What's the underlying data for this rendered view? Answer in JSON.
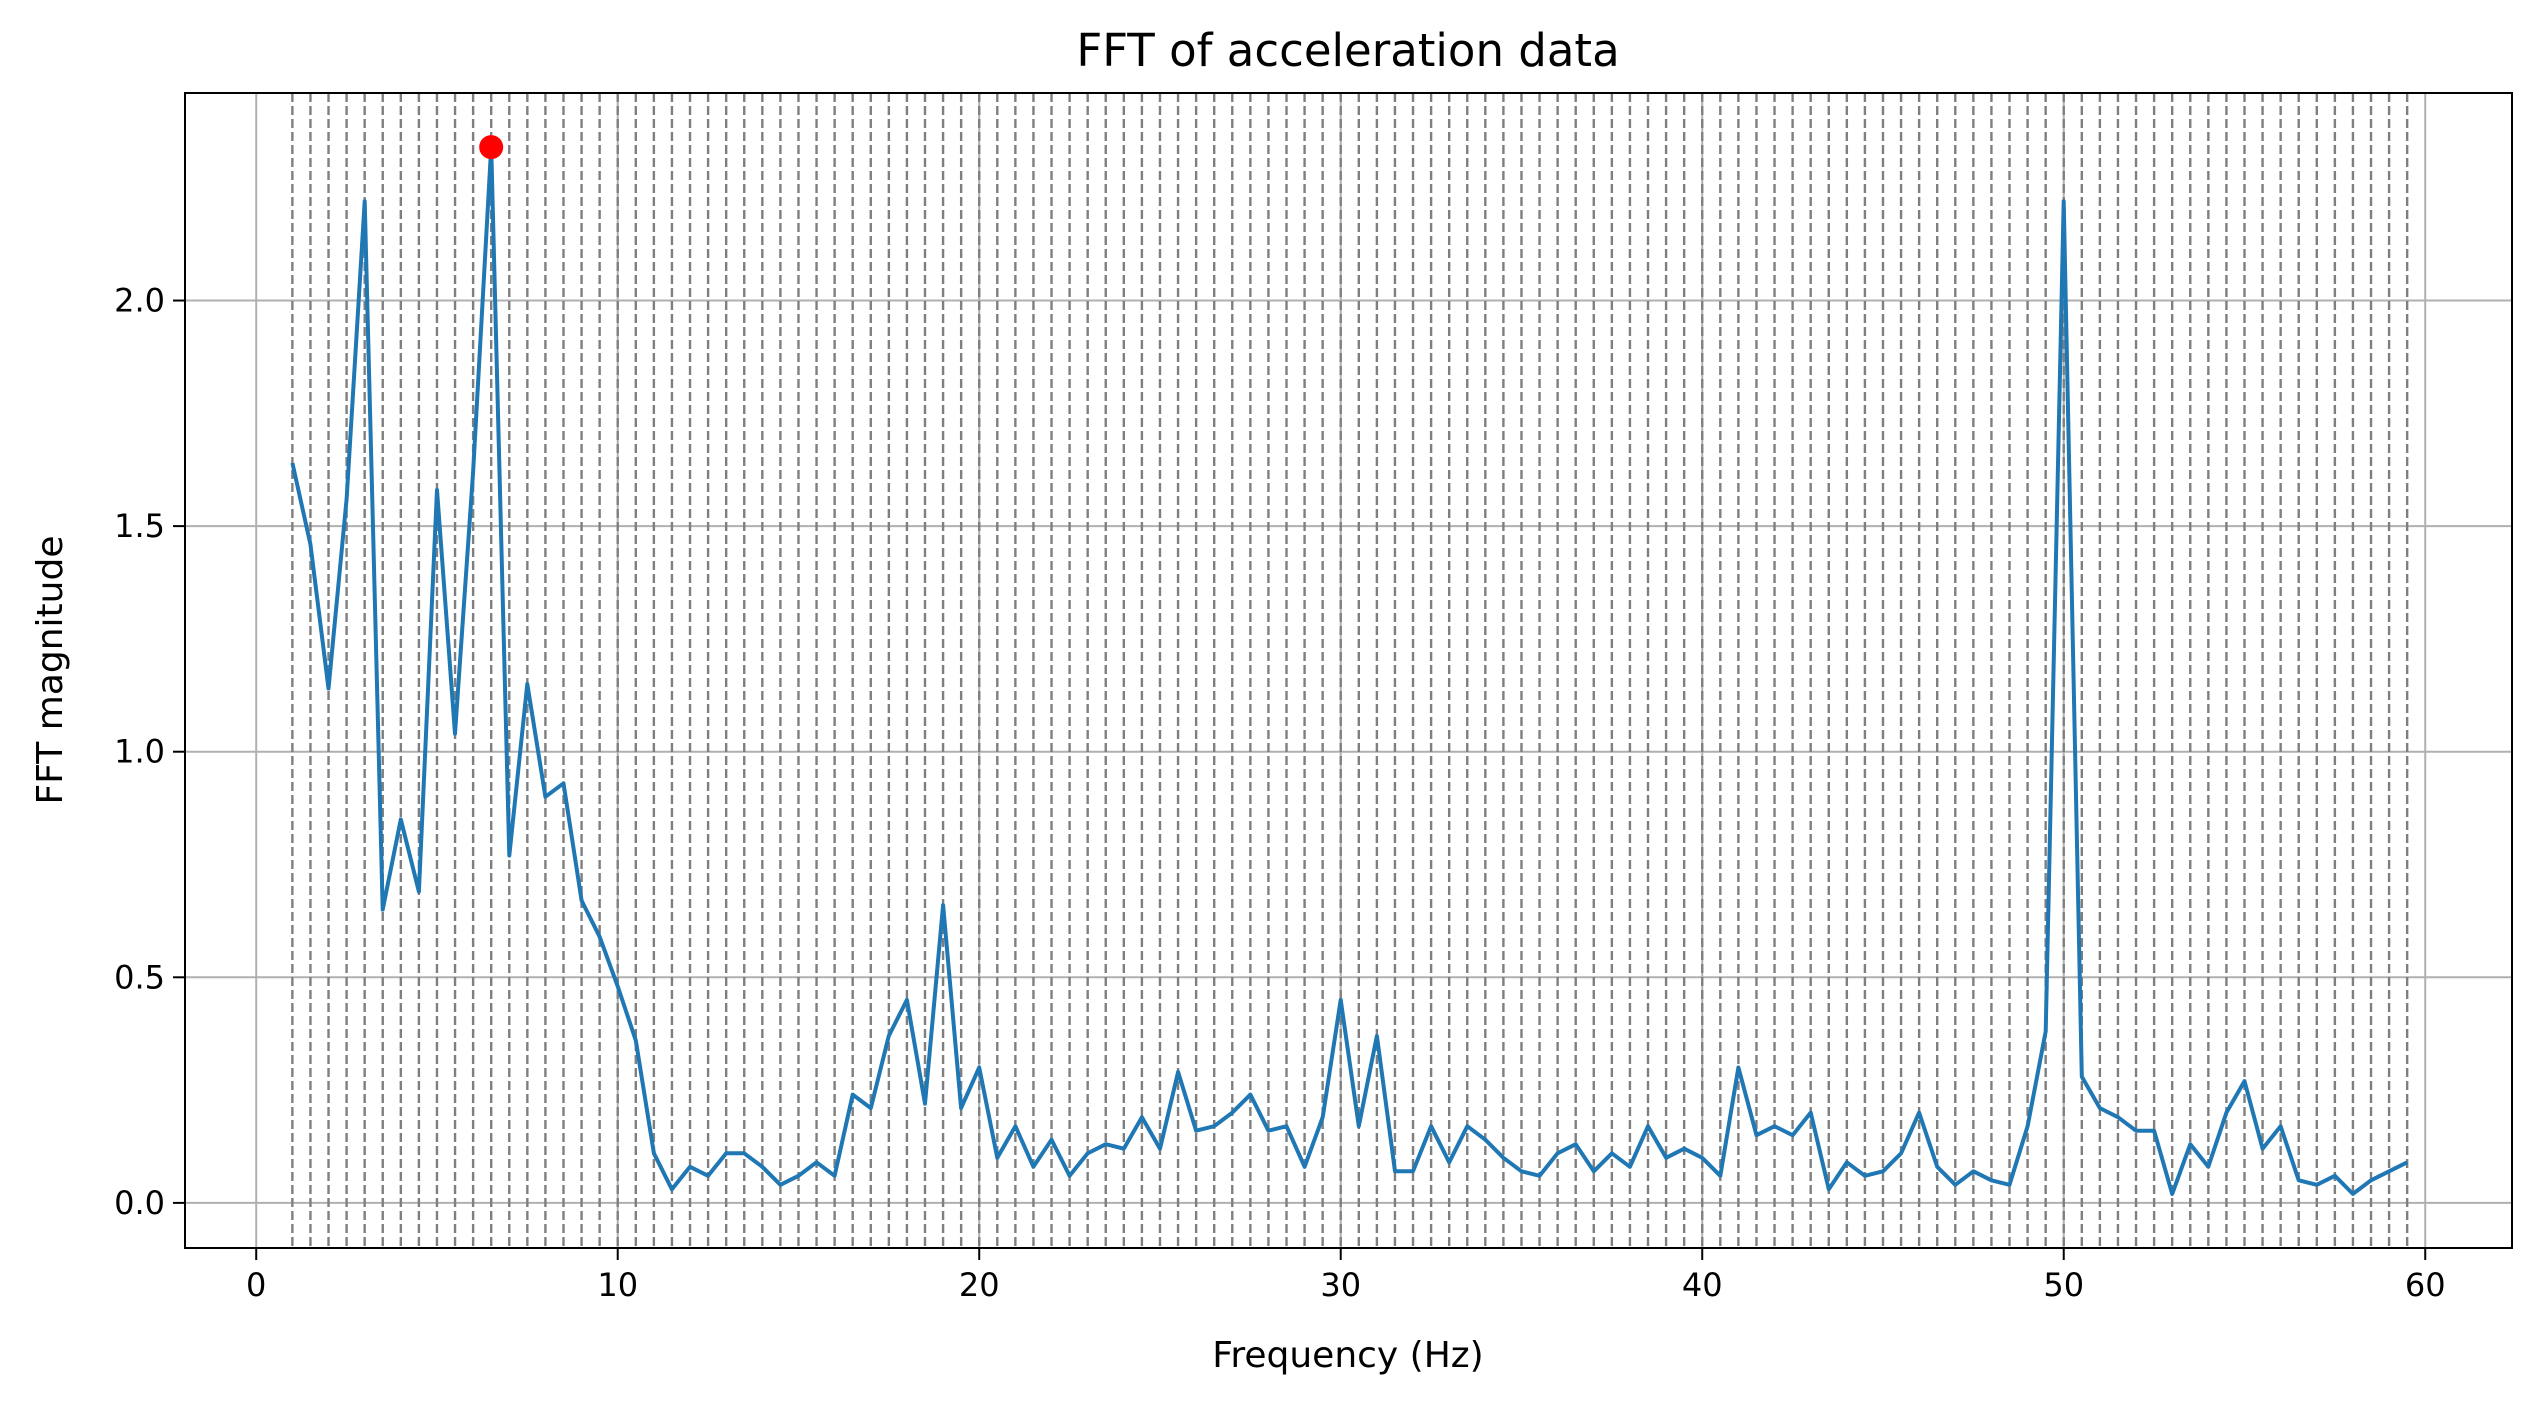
{
  "chart_data": {
    "type": "line",
    "title": "FFT of acceleration data",
    "xlabel": "Frequency (Hz)",
    "ylabel": "FFT magnitude",
    "xlim": [
      -1.97,
      62.4
    ],
    "ylim": [
      -0.1,
      2.46
    ],
    "xticks": [
      0,
      10,
      20,
      30,
      40,
      50,
      60
    ],
    "yticks": [
      0.0,
      0.5,
      1.0,
      1.5,
      2.0
    ],
    "xtick_labels": [
      "0",
      "10",
      "20",
      "30",
      "40",
      "50",
      "60"
    ],
    "ytick_labels": [
      "0.0",
      "0.5",
      "1.0",
      "1.5",
      "2.0"
    ],
    "grid": true,
    "colors": {
      "line": "#1f77b4",
      "peak": "#ff0000",
      "vlines": "#7f7f7f",
      "grid": "#b0b0b0"
    },
    "vlines": {
      "style": "dashed",
      "start": 1.0,
      "step": 0.5,
      "count": 118
    },
    "series": [
      {
        "x": [
          1.0,
          1.5,
          2.0,
          2.5,
          3.0,
          3.5,
          4.0,
          4.5,
          5.0,
          5.5,
          6.0,
          6.5,
          7.0,
          7.5,
          8.0,
          8.5,
          9.0,
          9.5,
          10.0,
          10.5,
          11.0,
          11.5,
          12.0,
          12.5,
          13.0,
          13.5,
          14.0,
          14.5,
          15.0,
          15.5,
          16.0,
          16.5,
          17.0,
          17.5,
          18.0,
          18.5,
          19.0,
          19.5,
          20.0,
          20.5,
          21.0,
          21.5,
          22.0,
          22.5,
          23.0,
          23.5,
          24.0,
          24.5,
          25.0,
          25.5,
          26.0,
          26.5,
          27.0,
          27.5,
          28.0,
          28.5,
          29.0,
          29.5,
          30.0,
          30.5,
          31.0,
          31.5,
          32.0,
          32.5,
          33.0,
          33.5,
          34.0,
          34.5,
          35.0,
          35.5,
          36.0,
          36.5,
          37.0,
          37.5,
          38.0,
          38.5,
          39.0,
          39.5,
          40.0,
          40.5,
          41.0,
          41.5,
          42.0,
          42.5,
          43.0,
          43.5,
          44.0,
          44.5,
          45.0,
          45.5,
          46.0,
          46.5,
          47.0,
          47.5,
          48.0,
          48.5,
          49.0,
          49.5,
          50.0,
          50.5,
          51.0,
          51.5,
          52.0,
          52.5,
          53.0,
          53.5,
          54.0,
          54.5,
          55.0,
          55.5,
          56.0,
          56.5,
          57.0,
          57.5,
          58.0,
          58.5,
          59.0,
          59.5
        ],
        "y": [
          1.64,
          1.46,
          1.14,
          1.56,
          2.22,
          0.65,
          0.85,
          0.69,
          1.58,
          1.04,
          1.62,
          2.34,
          0.77,
          1.15,
          0.9,
          0.93,
          0.67,
          0.59,
          0.48,
          0.36,
          0.11,
          0.03,
          0.08,
          0.06,
          0.11,
          0.11,
          0.08,
          0.04,
          0.06,
          0.09,
          0.06,
          0.24,
          0.21,
          0.37,
          0.45,
          0.22,
          0.66,
          0.21,
          0.3,
          0.1,
          0.17,
          0.08,
          0.14,
          0.06,
          0.11,
          0.13,
          0.12,
          0.19,
          0.12,
          0.29,
          0.16,
          0.17,
          0.2,
          0.24,
          0.16,
          0.17,
          0.08,
          0.19,
          0.45,
          0.17,
          0.37,
          0.07,
          0.07,
          0.17,
          0.09,
          0.17,
          0.14,
          0.1,
          0.07,
          0.06,
          0.11,
          0.13,
          0.07,
          0.11,
          0.08,
          0.17,
          0.1,
          0.12,
          0.1,
          0.06,
          0.3,
          0.15,
          0.17,
          0.15,
          0.2,
          0.03,
          0.09,
          0.06,
          0.07,
          0.11,
          0.2,
          0.08,
          0.04,
          0.07,
          0.05,
          0.04,
          0.17,
          0.38,
          2.22,
          0.28,
          0.21,
          0.19,
          0.16,
          0.16,
          0.02,
          0.13,
          0.08,
          0.2,
          0.27,
          0.12,
          0.17,
          0.05,
          0.04,
          0.06,
          0.02,
          0.05,
          0.07,
          0.09
        ]
      }
    ],
    "peak": {
      "x": 6.5,
      "y": 2.34
    }
  }
}
